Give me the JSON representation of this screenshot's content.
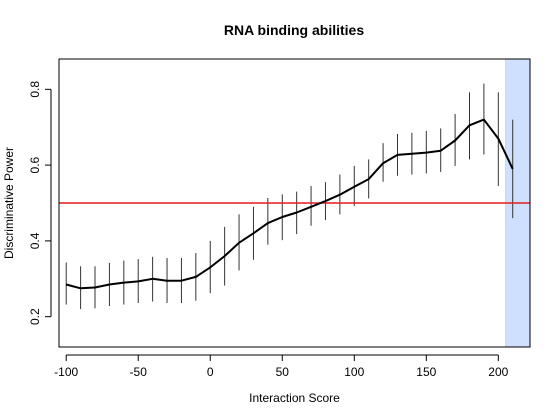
{
  "chart_data": {
    "type": "line",
    "title": "RNA binding abilities",
    "xlabel": "Interaction Score",
    "ylabel": "Discriminative Power",
    "xlim": [
      -105,
      222
    ],
    "ylim": [
      0.12,
      0.88
    ],
    "x_ticks": [
      -100,
      -50,
      0,
      50,
      100,
      150,
      200
    ],
    "y_ticks": [
      0.2,
      0.4,
      0.6,
      0.8
    ],
    "grid": false,
    "legend": "none",
    "reference_line": {
      "y": 0.5,
      "color": "#e41a1c"
    },
    "highlight_band": {
      "x_start": 205,
      "x_end": 222,
      "color": "#cfe0ff"
    },
    "series": [
      {
        "color": "#000000",
        "x": [
          -100,
          -90,
          -80,
          -70,
          -60,
          -50,
          -40,
          -30,
          -20,
          -10,
          0,
          10,
          20,
          30,
          40,
          50,
          60,
          70,
          80,
          90,
          100,
          110,
          120,
          130,
          140,
          150,
          160,
          170,
          180,
          190,
          200,
          210
        ],
        "y": [
          0.285,
          0.275,
          0.277,
          0.285,
          0.29,
          0.293,
          0.3,
          0.295,
          0.295,
          0.305,
          0.33,
          0.36,
          0.395,
          0.42,
          0.447,
          0.463,
          0.475,
          0.49,
          0.505,
          0.522,
          0.543,
          0.563,
          0.605,
          0.627,
          0.63,
          0.633,
          0.638,
          0.665,
          0.705,
          0.72,
          0.67,
          0.59
        ],
        "lower": [
          0.232,
          0.22,
          0.222,
          0.228,
          0.232,
          0.236,
          0.24,
          0.236,
          0.236,
          0.242,
          0.262,
          0.282,
          0.322,
          0.35,
          0.39,
          0.402,
          0.418,
          0.44,
          0.455,
          0.47,
          0.492,
          0.512,
          0.556,
          0.572,
          0.575,
          0.578,
          0.582,
          0.598,
          0.615,
          0.628,
          0.545,
          0.46
        ],
        "upper": [
          0.343,
          0.333,
          0.333,
          0.342,
          0.348,
          0.352,
          0.358,
          0.355,
          0.355,
          0.368,
          0.4,
          0.437,
          0.47,
          0.49,
          0.513,
          0.523,
          0.53,
          0.545,
          0.555,
          0.575,
          0.598,
          0.615,
          0.658,
          0.682,
          0.685,
          0.69,
          0.697,
          0.735,
          0.792,
          0.815,
          0.792,
          0.72
        ]
      }
    ]
  }
}
